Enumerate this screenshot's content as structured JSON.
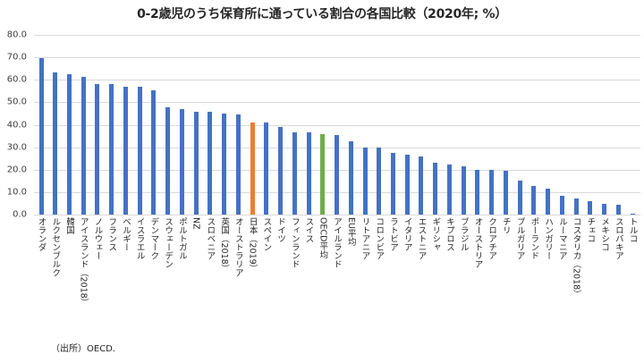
{
  "title": "0-2歳児のうち保育所に通っている割合の各国比較（2020年; %）",
  "source": "（出所）OECD.",
  "colors": {
    "default_bar": "#4472c4",
    "japan_bar": "#ed7d31",
    "oecd_avg_bar": "#70ad47",
    "gridline": "#d9d9d9"
  },
  "y_ticks": [
    "80.0",
    "70.0",
    "60.0",
    "50.0",
    "40.0",
    "30.0",
    "20.0",
    "10.0",
    "0.0"
  ],
  "chart_data": {
    "type": "bar",
    "title": "0-2歳児のうち保育所に通っている割合の各国比較（2020年; %）",
    "xlabel": "",
    "ylabel": "",
    "ylim": [
      0,
      80
    ],
    "y_tick_step": 10,
    "grid": true,
    "legend": "none",
    "categories": [
      "オランダ",
      "ルクセンブルク",
      "韓国",
      "アイスランド（2018）",
      "ノルウェー",
      "フランス",
      "ベルギー",
      "イスラエル",
      "デンマーク",
      "スウェーデン",
      "ポルトガル",
      "NZ",
      "スロベニア",
      "英国（2018）",
      "オーストラリア",
      "日本（2019）",
      "スペイン",
      "ドイツ",
      "フィンランド",
      "スイス",
      "OECD平均",
      "アイルランド",
      "EU平均",
      "リトアニア",
      "コロンビア",
      "ラトビア",
      "イタリア",
      "エストニア",
      "ギリシャ",
      "キプロス",
      "ブラジル",
      "オーストリア",
      "クロアチア",
      "チリ",
      "ブルガリア",
      "ポーランド",
      "ハンガリー",
      "ルーマニア",
      "コスタリカ（2018）",
      "チェコ",
      "メキシコ",
      "スロバキア",
      "トルコ"
    ],
    "values": [
      69.5,
      63.3,
      62.6,
      61.3,
      58.3,
      58.0,
      57.0,
      56.9,
      55.2,
      47.6,
      46.9,
      45.9,
      45.8,
      45.0,
      44.7,
      41.0,
      40.9,
      39.0,
      36.8,
      36.7,
      35.7,
      35.6,
      32.6,
      29.8,
      29.8,
      27.3,
      26.6,
      25.8,
      23.0,
      22.2,
      21.3,
      20.1,
      19.9,
      19.5,
      15.2,
      12.9,
      11.6,
      8.3,
      7.3,
      6.0,
      4.8,
      4.5,
      0.5
    ],
    "highlights": {
      "日本（2019）": "#ed7d31",
      "OECD平均": "#70ad47"
    },
    "source": "（出所）OECD."
  }
}
